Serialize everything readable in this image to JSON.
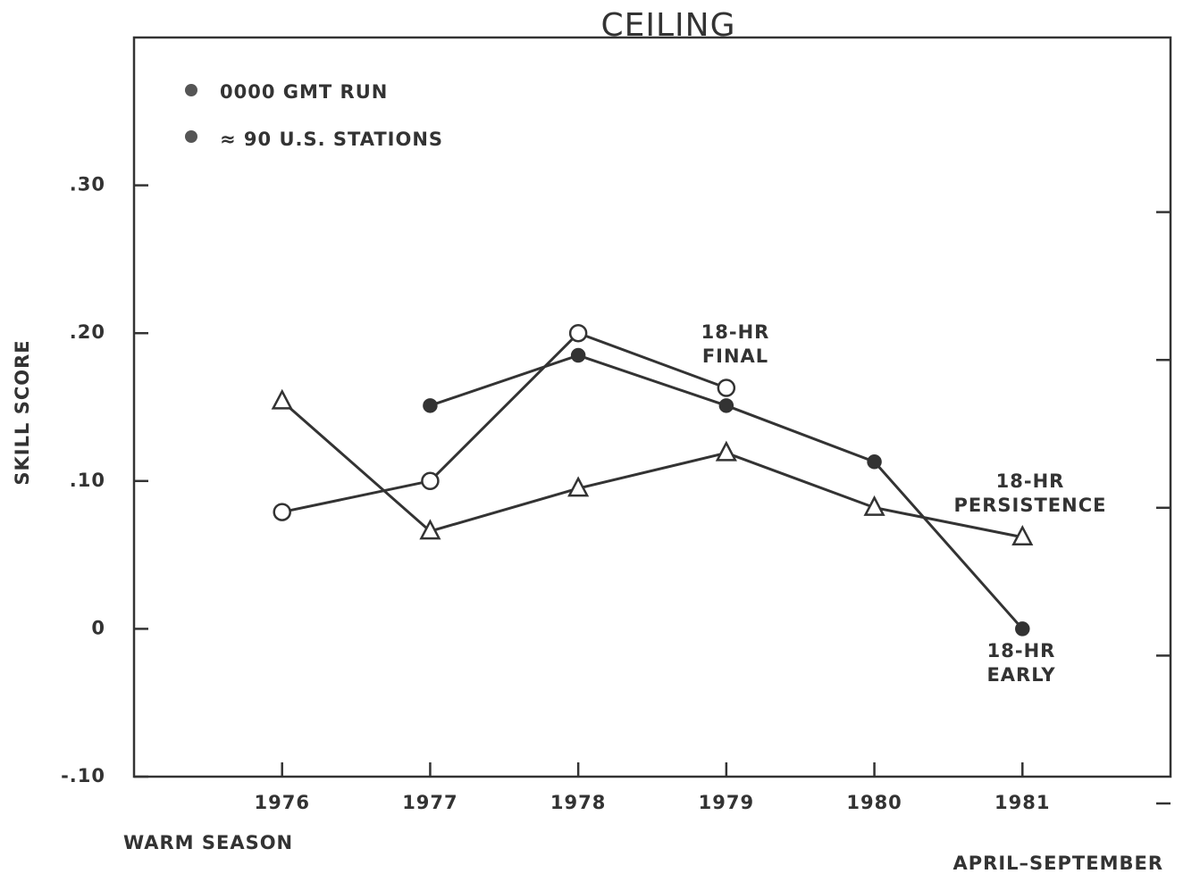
{
  "chart_data": {
    "type": "line",
    "title": "CEILING",
    "ylabel": "SKILL SCORE",
    "legend_notes": [
      "0000 GMT RUN",
      "≈ 90 U.S. STATIONS"
    ],
    "x_notes": [
      "WARM SEASON",
      "APRIL–SEPTEMBER"
    ],
    "x": [
      1976,
      1977,
      1978,
      1979,
      1980,
      1981
    ],
    "xlim": [
      1975,
      1982
    ],
    "xticks": [
      1976,
      1977,
      1978,
      1979,
      1980,
      1981
    ],
    "ylim": [
      -0.1,
      0.4
    ],
    "yticks": [
      {
        "value": -0.1,
        "label": "-.10"
      },
      0,
      {
        "value": 0.1,
        "label": ".10"
      },
      {
        "value": 0.2,
        "label": ".20"
      },
      {
        "value": 0.3,
        "label": ".30"
      }
    ],
    "series": [
      {
        "label": [
          "18-HR",
          "FINAL"
        ],
        "marker": "circle-open",
        "color": "#333333",
        "values": [
          0.079,
          0.1,
          0.2,
          0.163,
          null,
          null
        ]
      },
      {
        "label": [
          "18-HR",
          "EARLY"
        ],
        "marker": "circle-filled",
        "color": "#333333",
        "values": [
          null,
          0.151,
          0.185,
          0.151,
          0.113,
          0
        ]
      },
      {
        "label": [
          "18-HR",
          "PERSISTENCE"
        ],
        "marker": "triangle-open",
        "color": "#333333",
        "values": [
          0.154,
          0.066,
          0.095,
          0.119,
          0.082,
          0.062
        ]
      }
    ]
  }
}
